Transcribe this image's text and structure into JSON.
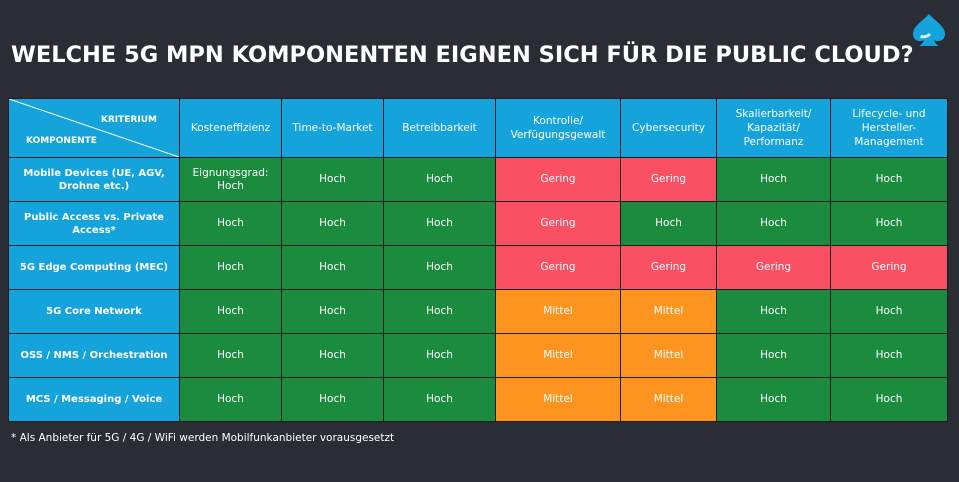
{
  "slide": {
    "title": "WELCHE 5G MPN KOMPONENTEN EIGNEN SICH FÜR DIE PUBLIC CLOUD?",
    "footnote": "* Als Anbieter für 5G / 4G / WiFi werden Mobilfunkanbieter vorausgesetzt",
    "logo_icon": "spade-logo-icon"
  },
  "colors": {
    "background": "#2b2d35",
    "header_blue": "#15a3dc",
    "hoch": "#1b8b3e",
    "gering": "#fa5064",
    "mittel": "#fd9420"
  },
  "table": {
    "corner_top": "KRITERIUM",
    "corner_bottom": "KOMPONENTE",
    "columns": [
      "Kosteneffizienz",
      "Time-to-Market",
      "Betreibbarkeit",
      "Kontrolle/ Verfügungsgewalt",
      "Cybersecurity",
      "Skalierbarkeit/ Kapazität/ Performanz",
      "Lifecycle- und Hersteller-Management"
    ],
    "rows": [
      {
        "label": "Mobile Devices (UE, AGV, Drohne etc.)",
        "cells": [
          {
            "text": "Eignungsgrad: Hoch",
            "level": "hoch"
          },
          {
            "text": "Hoch",
            "level": "hoch"
          },
          {
            "text": "Hoch",
            "level": "hoch"
          },
          {
            "text": "Gering",
            "level": "gering"
          },
          {
            "text": "Gering",
            "level": "gering"
          },
          {
            "text": "Hoch",
            "level": "hoch"
          },
          {
            "text": "Hoch",
            "level": "hoch"
          }
        ]
      },
      {
        "label": "Public Access vs. Private Access*",
        "cells": [
          {
            "text": "Hoch",
            "level": "hoch"
          },
          {
            "text": "Hoch",
            "level": "hoch"
          },
          {
            "text": "Hoch",
            "level": "hoch"
          },
          {
            "text": "Gering",
            "level": "gering"
          },
          {
            "text": "Hoch",
            "level": "hoch"
          },
          {
            "text": "Hoch",
            "level": "hoch"
          },
          {
            "text": "Hoch",
            "level": "hoch"
          }
        ]
      },
      {
        "label": "5G Edge Computing (MEC)",
        "cells": [
          {
            "text": "Hoch",
            "level": "hoch"
          },
          {
            "text": "Hoch",
            "level": "hoch"
          },
          {
            "text": "Hoch",
            "level": "hoch"
          },
          {
            "text": "Gering",
            "level": "gering"
          },
          {
            "text": "Gering",
            "level": "gering"
          },
          {
            "text": "Gering",
            "level": "gering"
          },
          {
            "text": "Gering",
            "level": "gering"
          }
        ]
      },
      {
        "label": "5G Core Network",
        "cells": [
          {
            "text": "Hoch",
            "level": "hoch"
          },
          {
            "text": "Hoch",
            "level": "hoch"
          },
          {
            "text": "Hoch",
            "level": "hoch"
          },
          {
            "text": "Mittel",
            "level": "mittel"
          },
          {
            "text": "Mittel",
            "level": "mittel"
          },
          {
            "text": "Hoch",
            "level": "hoch"
          },
          {
            "text": "Hoch",
            "level": "hoch"
          }
        ]
      },
      {
        "label": "OSS / NMS / Orchestration",
        "cells": [
          {
            "text": "Hoch",
            "level": "hoch"
          },
          {
            "text": "Hoch",
            "level": "hoch"
          },
          {
            "text": "Hoch",
            "level": "hoch"
          },
          {
            "text": "Mittel",
            "level": "mittel"
          },
          {
            "text": "Mittel",
            "level": "mittel"
          },
          {
            "text": "Hoch",
            "level": "hoch"
          },
          {
            "text": "Hoch",
            "level": "hoch"
          }
        ]
      },
      {
        "label": "MCS / Messaging / Voice",
        "cells": [
          {
            "text": "Hoch",
            "level": "hoch"
          },
          {
            "text": "Hoch",
            "level": "hoch"
          },
          {
            "text": "Hoch",
            "level": "hoch"
          },
          {
            "text": "Mittel",
            "level": "mittel"
          },
          {
            "text": "Mittel",
            "level": "mittel"
          },
          {
            "text": "Hoch",
            "level": "hoch"
          },
          {
            "text": "Hoch",
            "level": "hoch"
          }
        ]
      }
    ]
  }
}
